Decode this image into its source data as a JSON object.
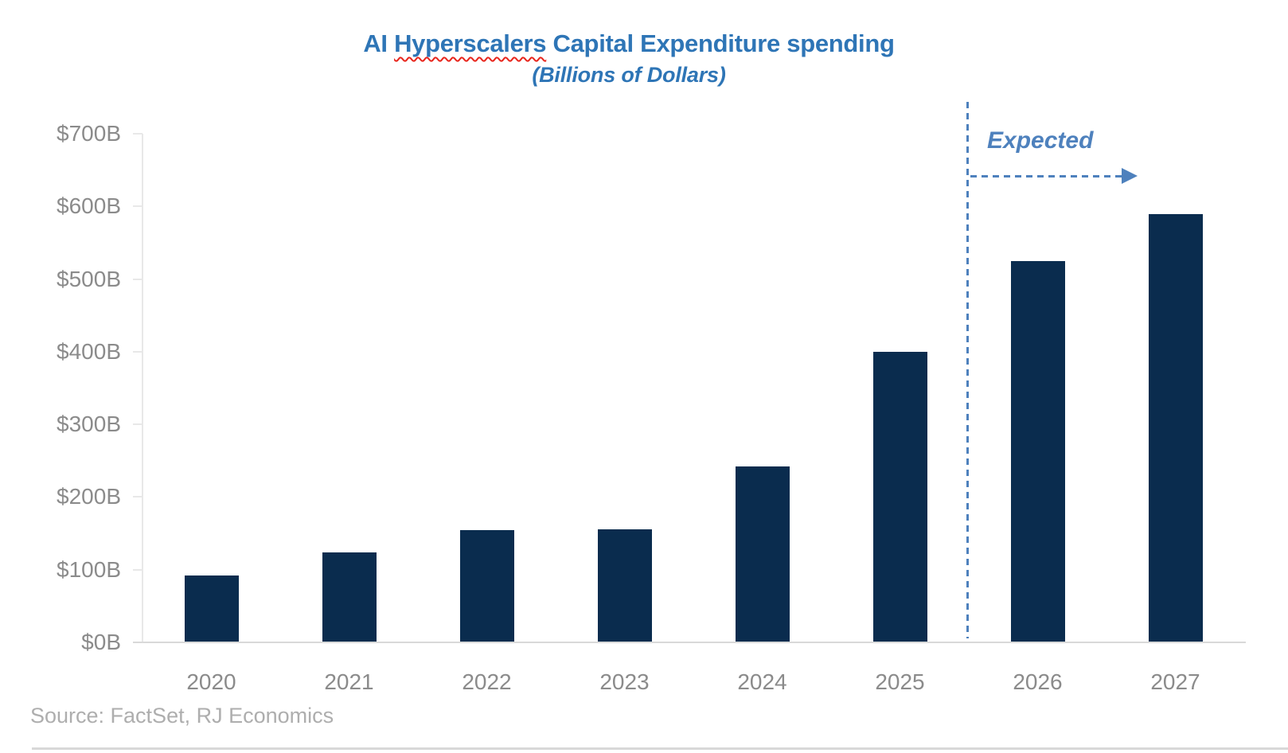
{
  "title": {
    "part1": "AI ",
    "misspelled_word": "Hyperscalers",
    "part2": " Capital Expenditure spending",
    "full": "AI Hyperscalers Capital Expenditure spending"
  },
  "subtitle": "(Billions of Dollars)",
  "annotation": {
    "label": "Expected"
  },
  "source": "Source: FactSet, RJ Economics",
  "colors": {
    "bar": "#0a2c4e",
    "title": "#2e75b6",
    "annotation": "#4e81bd",
    "axis_text": "#8b8b8b",
    "source_text": "#aeaeae",
    "y_axis_line": "#e8e8e8",
    "x_axis_line": "#d9d9d9",
    "squiggle": "#e8261d"
  },
  "chart_data": {
    "type": "bar",
    "title": "AI Hyperscalers Capital Expenditure spending",
    "subtitle": "(Billions of Dollars)",
    "categories": [
      "2020",
      "2021",
      "2022",
      "2023",
      "2024",
      "2025",
      "2026",
      "2027"
    ],
    "values": [
      92,
      124,
      154,
      156,
      242,
      400,
      525,
      589
    ],
    "unit": "billions of US dollars",
    "ylim": [
      0,
      700
    ],
    "ytick_step": 100,
    "ytick_labels": [
      "$0B",
      "$100B",
      "$200B",
      "$300B",
      "$400B",
      "$500B",
      "$600B",
      "$700B"
    ],
    "gridlines": false,
    "legend": "none",
    "expected_categories": [
      "2026",
      "2027"
    ],
    "expected_annotation": "Expected",
    "source": "Source: FactSet, RJ Economics"
  }
}
